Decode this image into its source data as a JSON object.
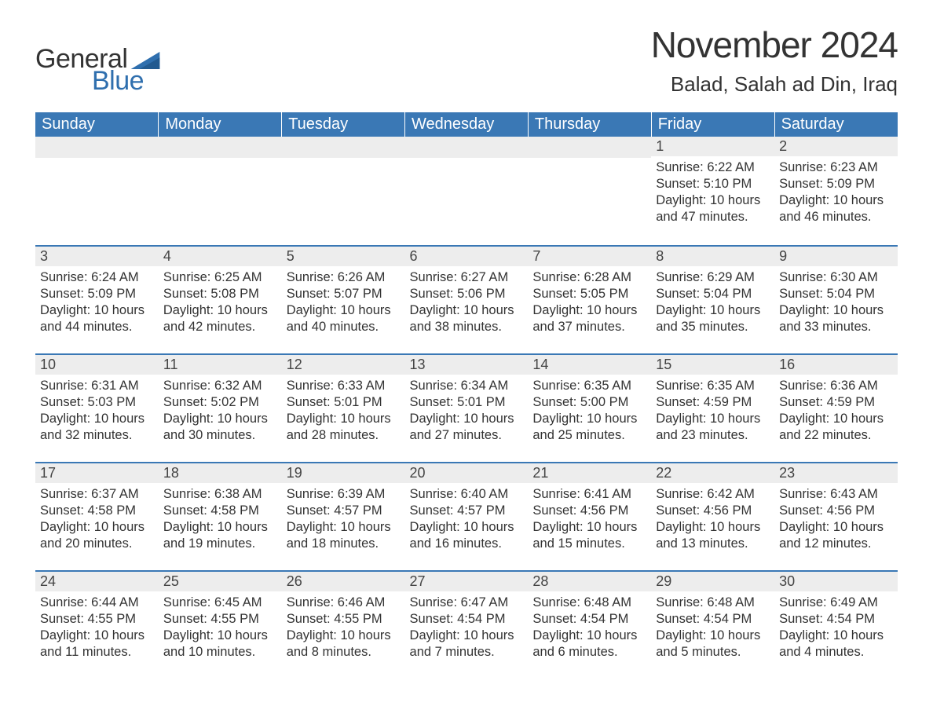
{
  "logo": {
    "word1": "General",
    "word2": "Blue",
    "flag_color": "#2f6fae"
  },
  "heading": {
    "month_title": "November 2024",
    "location": "Balad, Salah ad Din, Iraq"
  },
  "colors": {
    "header_bg": "#3a78b5",
    "header_text": "#ffffff",
    "band_bg": "#ededed",
    "band_border": "#3a78b5",
    "body_text": "#333333",
    "logo_blue": "#2f6fae"
  },
  "weekdays": [
    "Sunday",
    "Monday",
    "Tuesday",
    "Wednesday",
    "Thursday",
    "Friday",
    "Saturday"
  ],
  "weeks": [
    [
      null,
      null,
      null,
      null,
      null,
      {
        "n": "1",
        "sr": "Sunrise: 6:22 AM",
        "ss": "Sunset: 5:10 PM",
        "d1": "Daylight: 10 hours",
        "d2": "and 47 minutes."
      },
      {
        "n": "2",
        "sr": "Sunrise: 6:23 AM",
        "ss": "Sunset: 5:09 PM",
        "d1": "Daylight: 10 hours",
        "d2": "and 46 minutes."
      }
    ],
    [
      {
        "n": "3",
        "sr": "Sunrise: 6:24 AM",
        "ss": "Sunset: 5:09 PM",
        "d1": "Daylight: 10 hours",
        "d2": "and 44 minutes."
      },
      {
        "n": "4",
        "sr": "Sunrise: 6:25 AM",
        "ss": "Sunset: 5:08 PM",
        "d1": "Daylight: 10 hours",
        "d2": "and 42 minutes."
      },
      {
        "n": "5",
        "sr": "Sunrise: 6:26 AM",
        "ss": "Sunset: 5:07 PM",
        "d1": "Daylight: 10 hours",
        "d2": "and 40 minutes."
      },
      {
        "n": "6",
        "sr": "Sunrise: 6:27 AM",
        "ss": "Sunset: 5:06 PM",
        "d1": "Daylight: 10 hours",
        "d2": "and 38 minutes."
      },
      {
        "n": "7",
        "sr": "Sunrise: 6:28 AM",
        "ss": "Sunset: 5:05 PM",
        "d1": "Daylight: 10 hours",
        "d2": "and 37 minutes."
      },
      {
        "n": "8",
        "sr": "Sunrise: 6:29 AM",
        "ss": "Sunset: 5:04 PM",
        "d1": "Daylight: 10 hours",
        "d2": "and 35 minutes."
      },
      {
        "n": "9",
        "sr": "Sunrise: 6:30 AM",
        "ss": "Sunset: 5:04 PM",
        "d1": "Daylight: 10 hours",
        "d2": "and 33 minutes."
      }
    ],
    [
      {
        "n": "10",
        "sr": "Sunrise: 6:31 AM",
        "ss": "Sunset: 5:03 PM",
        "d1": "Daylight: 10 hours",
        "d2": "and 32 minutes."
      },
      {
        "n": "11",
        "sr": "Sunrise: 6:32 AM",
        "ss": "Sunset: 5:02 PM",
        "d1": "Daylight: 10 hours",
        "d2": "and 30 minutes."
      },
      {
        "n": "12",
        "sr": "Sunrise: 6:33 AM",
        "ss": "Sunset: 5:01 PM",
        "d1": "Daylight: 10 hours",
        "d2": "and 28 minutes."
      },
      {
        "n": "13",
        "sr": "Sunrise: 6:34 AM",
        "ss": "Sunset: 5:01 PM",
        "d1": "Daylight: 10 hours",
        "d2": "and 27 minutes."
      },
      {
        "n": "14",
        "sr": "Sunrise: 6:35 AM",
        "ss": "Sunset: 5:00 PM",
        "d1": "Daylight: 10 hours",
        "d2": "and 25 minutes."
      },
      {
        "n": "15",
        "sr": "Sunrise: 6:35 AM",
        "ss": "Sunset: 4:59 PM",
        "d1": "Daylight: 10 hours",
        "d2": "and 23 minutes."
      },
      {
        "n": "16",
        "sr": "Sunrise: 6:36 AM",
        "ss": "Sunset: 4:59 PM",
        "d1": "Daylight: 10 hours",
        "d2": "and 22 minutes."
      }
    ],
    [
      {
        "n": "17",
        "sr": "Sunrise: 6:37 AM",
        "ss": "Sunset: 4:58 PM",
        "d1": "Daylight: 10 hours",
        "d2": "and 20 minutes."
      },
      {
        "n": "18",
        "sr": "Sunrise: 6:38 AM",
        "ss": "Sunset: 4:58 PM",
        "d1": "Daylight: 10 hours",
        "d2": "and 19 minutes."
      },
      {
        "n": "19",
        "sr": "Sunrise: 6:39 AM",
        "ss": "Sunset: 4:57 PM",
        "d1": "Daylight: 10 hours",
        "d2": "and 18 minutes."
      },
      {
        "n": "20",
        "sr": "Sunrise: 6:40 AM",
        "ss": "Sunset: 4:57 PM",
        "d1": "Daylight: 10 hours",
        "d2": "and 16 minutes."
      },
      {
        "n": "21",
        "sr": "Sunrise: 6:41 AM",
        "ss": "Sunset: 4:56 PM",
        "d1": "Daylight: 10 hours",
        "d2": "and 15 minutes."
      },
      {
        "n": "22",
        "sr": "Sunrise: 6:42 AM",
        "ss": "Sunset: 4:56 PM",
        "d1": "Daylight: 10 hours",
        "d2": "and 13 minutes."
      },
      {
        "n": "23",
        "sr": "Sunrise: 6:43 AM",
        "ss": "Sunset: 4:56 PM",
        "d1": "Daylight: 10 hours",
        "d2": "and 12 minutes."
      }
    ],
    [
      {
        "n": "24",
        "sr": "Sunrise: 6:44 AM",
        "ss": "Sunset: 4:55 PM",
        "d1": "Daylight: 10 hours",
        "d2": "and 11 minutes."
      },
      {
        "n": "25",
        "sr": "Sunrise: 6:45 AM",
        "ss": "Sunset: 4:55 PM",
        "d1": "Daylight: 10 hours",
        "d2": "and 10 minutes."
      },
      {
        "n": "26",
        "sr": "Sunrise: 6:46 AM",
        "ss": "Sunset: 4:55 PM",
        "d1": "Daylight: 10 hours",
        "d2": "and 8 minutes."
      },
      {
        "n": "27",
        "sr": "Sunrise: 6:47 AM",
        "ss": "Sunset: 4:54 PM",
        "d1": "Daylight: 10 hours",
        "d2": "and 7 minutes."
      },
      {
        "n": "28",
        "sr": "Sunrise: 6:48 AM",
        "ss": "Sunset: 4:54 PM",
        "d1": "Daylight: 10 hours",
        "d2": "and 6 minutes."
      },
      {
        "n": "29",
        "sr": "Sunrise: 6:48 AM",
        "ss": "Sunset: 4:54 PM",
        "d1": "Daylight: 10 hours",
        "d2": "and 5 minutes."
      },
      {
        "n": "30",
        "sr": "Sunrise: 6:49 AM",
        "ss": "Sunset: 4:54 PM",
        "d1": "Daylight: 10 hours",
        "d2": "and 4 minutes."
      }
    ]
  ]
}
